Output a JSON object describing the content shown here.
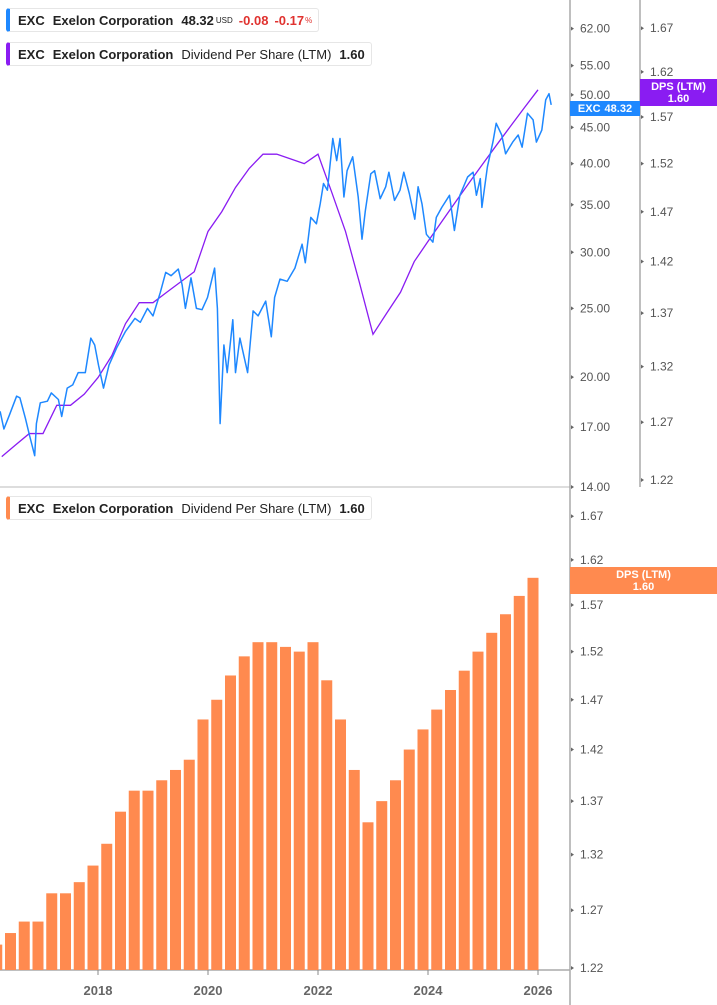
{
  "legend_price": {
    "ticker": "EXC",
    "name": "Exelon Corporation",
    "price": "48.32",
    "currency": "USD",
    "change": "-0.08",
    "change_pct": "-0.17",
    "pct_sign": "%",
    "color": "#1e88ff"
  },
  "legend_dps_top": {
    "ticker": "EXC",
    "name": "Exelon Corporation",
    "metric": "Dividend Per Share (LTM)",
    "value": "1.60",
    "color": "#8a1cf2"
  },
  "legend_dps_bottom": {
    "ticker": "EXC",
    "name": "Exelon Corporation",
    "metric": "Dividend Per Share (LTM)",
    "value": "1.60",
    "color": "#ff8a4f"
  },
  "tags": {
    "price": {
      "label": "EXC",
      "value": "48.32"
    },
    "dps_top": {
      "label": "DPS (LTM)",
      "value": "1.60"
    },
    "dps_bottom": {
      "label": "DPS (LTM)",
      "value": "1.60"
    }
  },
  "chart_data": [
    {
      "type": "line",
      "scale": "log",
      "x_unit": "year",
      "series": [
        {
          "name": "EXC",
          "color": "#1e88ff",
          "axis": "price",
          "points": [
            [
              2016.22,
              17.9
            ],
            [
              2016.29,
              16.9
            ],
            [
              2016.39,
              17.7
            ],
            [
              2016.52,
              18.8
            ],
            [
              2016.58,
              18.7
            ],
            [
              2016.68,
              17.5
            ],
            [
              2016.75,
              16.6
            ],
            [
              2016.85,
              15.5
            ],
            [
              2016.88,
              17.2
            ],
            [
              2016.95,
              18.4
            ],
            [
              2017.08,
              18.5
            ],
            [
              2017.15,
              19.0
            ],
            [
              2017.28,
              18.6
            ],
            [
              2017.34,
              17.6
            ],
            [
              2017.44,
              19.3
            ],
            [
              2017.54,
              19.5
            ],
            [
              2017.64,
              20.3
            ],
            [
              2017.77,
              20.3
            ],
            [
              2017.87,
              22.7
            ],
            [
              2017.94,
              22.2
            ],
            [
              2018.01,
              20.8
            ],
            [
              2018.1,
              19.3
            ],
            [
              2018.2,
              20.8
            ],
            [
              2018.34,
              22.0
            ],
            [
              2018.5,
              23.2
            ],
            [
              2018.67,
              24.2
            ],
            [
              2018.77,
              23.9
            ],
            [
              2018.9,
              25.0
            ],
            [
              2019.0,
              24.4
            ],
            [
              2019.13,
              26.3
            ],
            [
              2019.23,
              28.1
            ],
            [
              2019.33,
              27.8
            ],
            [
              2019.46,
              28.4
            ],
            [
              2019.53,
              27.0
            ],
            [
              2019.59,
              25.0
            ],
            [
              2019.69,
              27.6
            ],
            [
              2019.79,
              25.0
            ],
            [
              2019.89,
              24.9
            ],
            [
              2019.99,
              25.9
            ],
            [
              2020.12,
              28.5
            ],
            [
              2020.17,
              25.0
            ],
            [
              2020.22,
              17.2
            ],
            [
              2020.29,
              22.2
            ],
            [
              2020.35,
              20.3
            ],
            [
              2020.45,
              24.1
            ],
            [
              2020.5,
              20.3
            ],
            [
              2020.58,
              22.7
            ],
            [
              2020.72,
              20.3
            ],
            [
              2020.82,
              24.8
            ],
            [
              2020.91,
              24.4
            ],
            [
              2021.05,
              25.6
            ],
            [
              2021.15,
              22.8
            ],
            [
              2021.21,
              25.9
            ],
            [
              2021.31,
              27.5
            ],
            [
              2021.44,
              27.3
            ],
            [
              2021.58,
              28.5
            ],
            [
              2021.71,
              30.8
            ],
            [
              2021.77,
              29.0
            ],
            [
              2021.87,
              33.6
            ],
            [
              2021.97,
              32.9
            ],
            [
              2022.04,
              35.1
            ],
            [
              2022.1,
              37.5
            ],
            [
              2022.17,
              36.7
            ],
            [
              2022.27,
              43.4
            ],
            [
              2022.34,
              40.4
            ],
            [
              2022.4,
              43.4
            ],
            [
              2022.47,
              35.9
            ],
            [
              2022.53,
              39.1
            ],
            [
              2022.63,
              40.9
            ],
            [
              2022.73,
              35.9
            ],
            [
              2022.8,
              31.3
            ],
            [
              2022.86,
              34.3
            ],
            [
              2022.96,
              38.7
            ],
            [
              2023.03,
              39.1
            ],
            [
              2023.13,
              35.7
            ],
            [
              2023.23,
              37.1
            ],
            [
              2023.29,
              38.9
            ],
            [
              2023.39,
              35.5
            ],
            [
              2023.49,
              36.7
            ],
            [
              2023.56,
              38.9
            ],
            [
              2023.66,
              36.3
            ],
            [
              2023.76,
              33.4
            ],
            [
              2023.82,
              37.1
            ],
            [
              2023.89,
              35.1
            ],
            [
              2023.97,
              31.8
            ],
            [
              2024.09,
              31.0
            ],
            [
              2024.15,
              33.6
            ],
            [
              2024.25,
              34.7
            ],
            [
              2024.39,
              36.1
            ],
            [
              2024.48,
              32.2
            ],
            [
              2024.58,
              36.1
            ],
            [
              2024.72,
              38.3
            ],
            [
              2024.82,
              38.9
            ],
            [
              2024.88,
              36.1
            ],
            [
              2024.95,
              38.1
            ],
            [
              2024.98,
              34.7
            ],
            [
              2025.08,
              39.6
            ],
            [
              2025.18,
              42.9
            ],
            [
              2025.24,
              45.6
            ],
            [
              2025.34,
              43.9
            ],
            [
              2025.41,
              41.3
            ],
            [
              2025.54,
              42.9
            ],
            [
              2025.64,
              43.9
            ],
            [
              2025.71,
              42.2
            ],
            [
              2025.81,
              47.1
            ],
            [
              2025.91,
              46.1
            ],
            [
              2025.97,
              42.9
            ],
            [
              2026.07,
              44.6
            ],
            [
              2026.14,
              49.2
            ],
            [
              2026.2,
              50.2
            ],
            [
              2026.24,
              48.4
            ]
          ]
        },
        {
          "name": "DPS (LTM)",
          "color": "#8a1cf2",
          "axis": "dps",
          "source": "dps"
        }
      ],
      "price_axis": {
        "ticks": [
          62,
          55,
          50,
          45,
          40,
          35,
          30,
          25,
          20,
          17,
          14
        ],
        "labels": [
          "62.00",
          "55.00",
          "50.00",
          "45.00",
          "40.00",
          "35.00",
          "30.00",
          "25.00",
          "20.00",
          "17.00",
          "14.00"
        ],
        "range": [
          14,
          62
        ]
      },
      "dps_axis": {
        "ticks": [
          1.67,
          1.62,
          1.57,
          1.52,
          1.47,
          1.42,
          1.37,
          1.32,
          1.27,
          1.22
        ],
        "labels": [
          "1.67",
          "1.62",
          "1.57",
          "1.52",
          "1.47",
          "1.42",
          "1.37",
          "1.32",
          "1.27",
          "1.22"
        ],
        "range": [
          1.22,
          1.67
        ]
      }
    },
    {
      "type": "bar",
      "scale": "log",
      "color": "#ff8a4f",
      "x_unit": "year",
      "x": [
        2016.25,
        2016.5,
        2016.75,
        2017.0,
        2017.25,
        2017.5,
        2017.75,
        2018.0,
        2018.25,
        2018.5,
        2018.75,
        2019.0,
        2019.25,
        2019.5,
        2019.75,
        2020.0,
        2020.25,
        2020.5,
        2020.75,
        2021.0,
        2021.25,
        2021.5,
        2021.75,
        2022.0,
        2022.25,
        2022.5,
        2022.75,
        2023.0,
        2023.25,
        2023.5,
        2023.75,
        2024.0,
        2024.25,
        2024.5,
        2024.75,
        2025.0,
        2025.25,
        2025.5,
        2025.75,
        2026.0
      ],
      "values": [
        1.24,
        1.25,
        1.26,
        1.26,
        1.285,
        1.285,
        1.295,
        1.31,
        1.33,
        1.36,
        1.38,
        1.38,
        1.39,
        1.4,
        1.41,
        1.45,
        1.47,
        1.495,
        1.515,
        1.53,
        1.53,
        1.525,
        1.52,
        1.53,
        1.49,
        1.45,
        1.4,
        1.35,
        1.37,
        1.39,
        1.42,
        1.44,
        1.46,
        1.48,
        1.5,
        1.52,
        1.54,
        1.56,
        1.58,
        1.6
      ],
      "axis": {
        "ticks": [
          1.67,
          1.62,
          1.57,
          1.52,
          1.47,
          1.42,
          1.37,
          1.32,
          1.27,
          1.22
        ],
        "labels": [
          "1.67",
          "1.62",
          "1.57",
          "1.52",
          "1.47",
          "1.42",
          "1.37",
          "1.32",
          "1.27",
          "1.22"
        ],
        "range": [
          1.22,
          1.67
        ]
      },
      "x_ticks": [
        2018,
        2020,
        2022,
        2024,
        2026
      ],
      "x_tick_labels": [
        "2018",
        "2020",
        "2022",
        "2024",
        "2026"
      ]
    }
  ]
}
